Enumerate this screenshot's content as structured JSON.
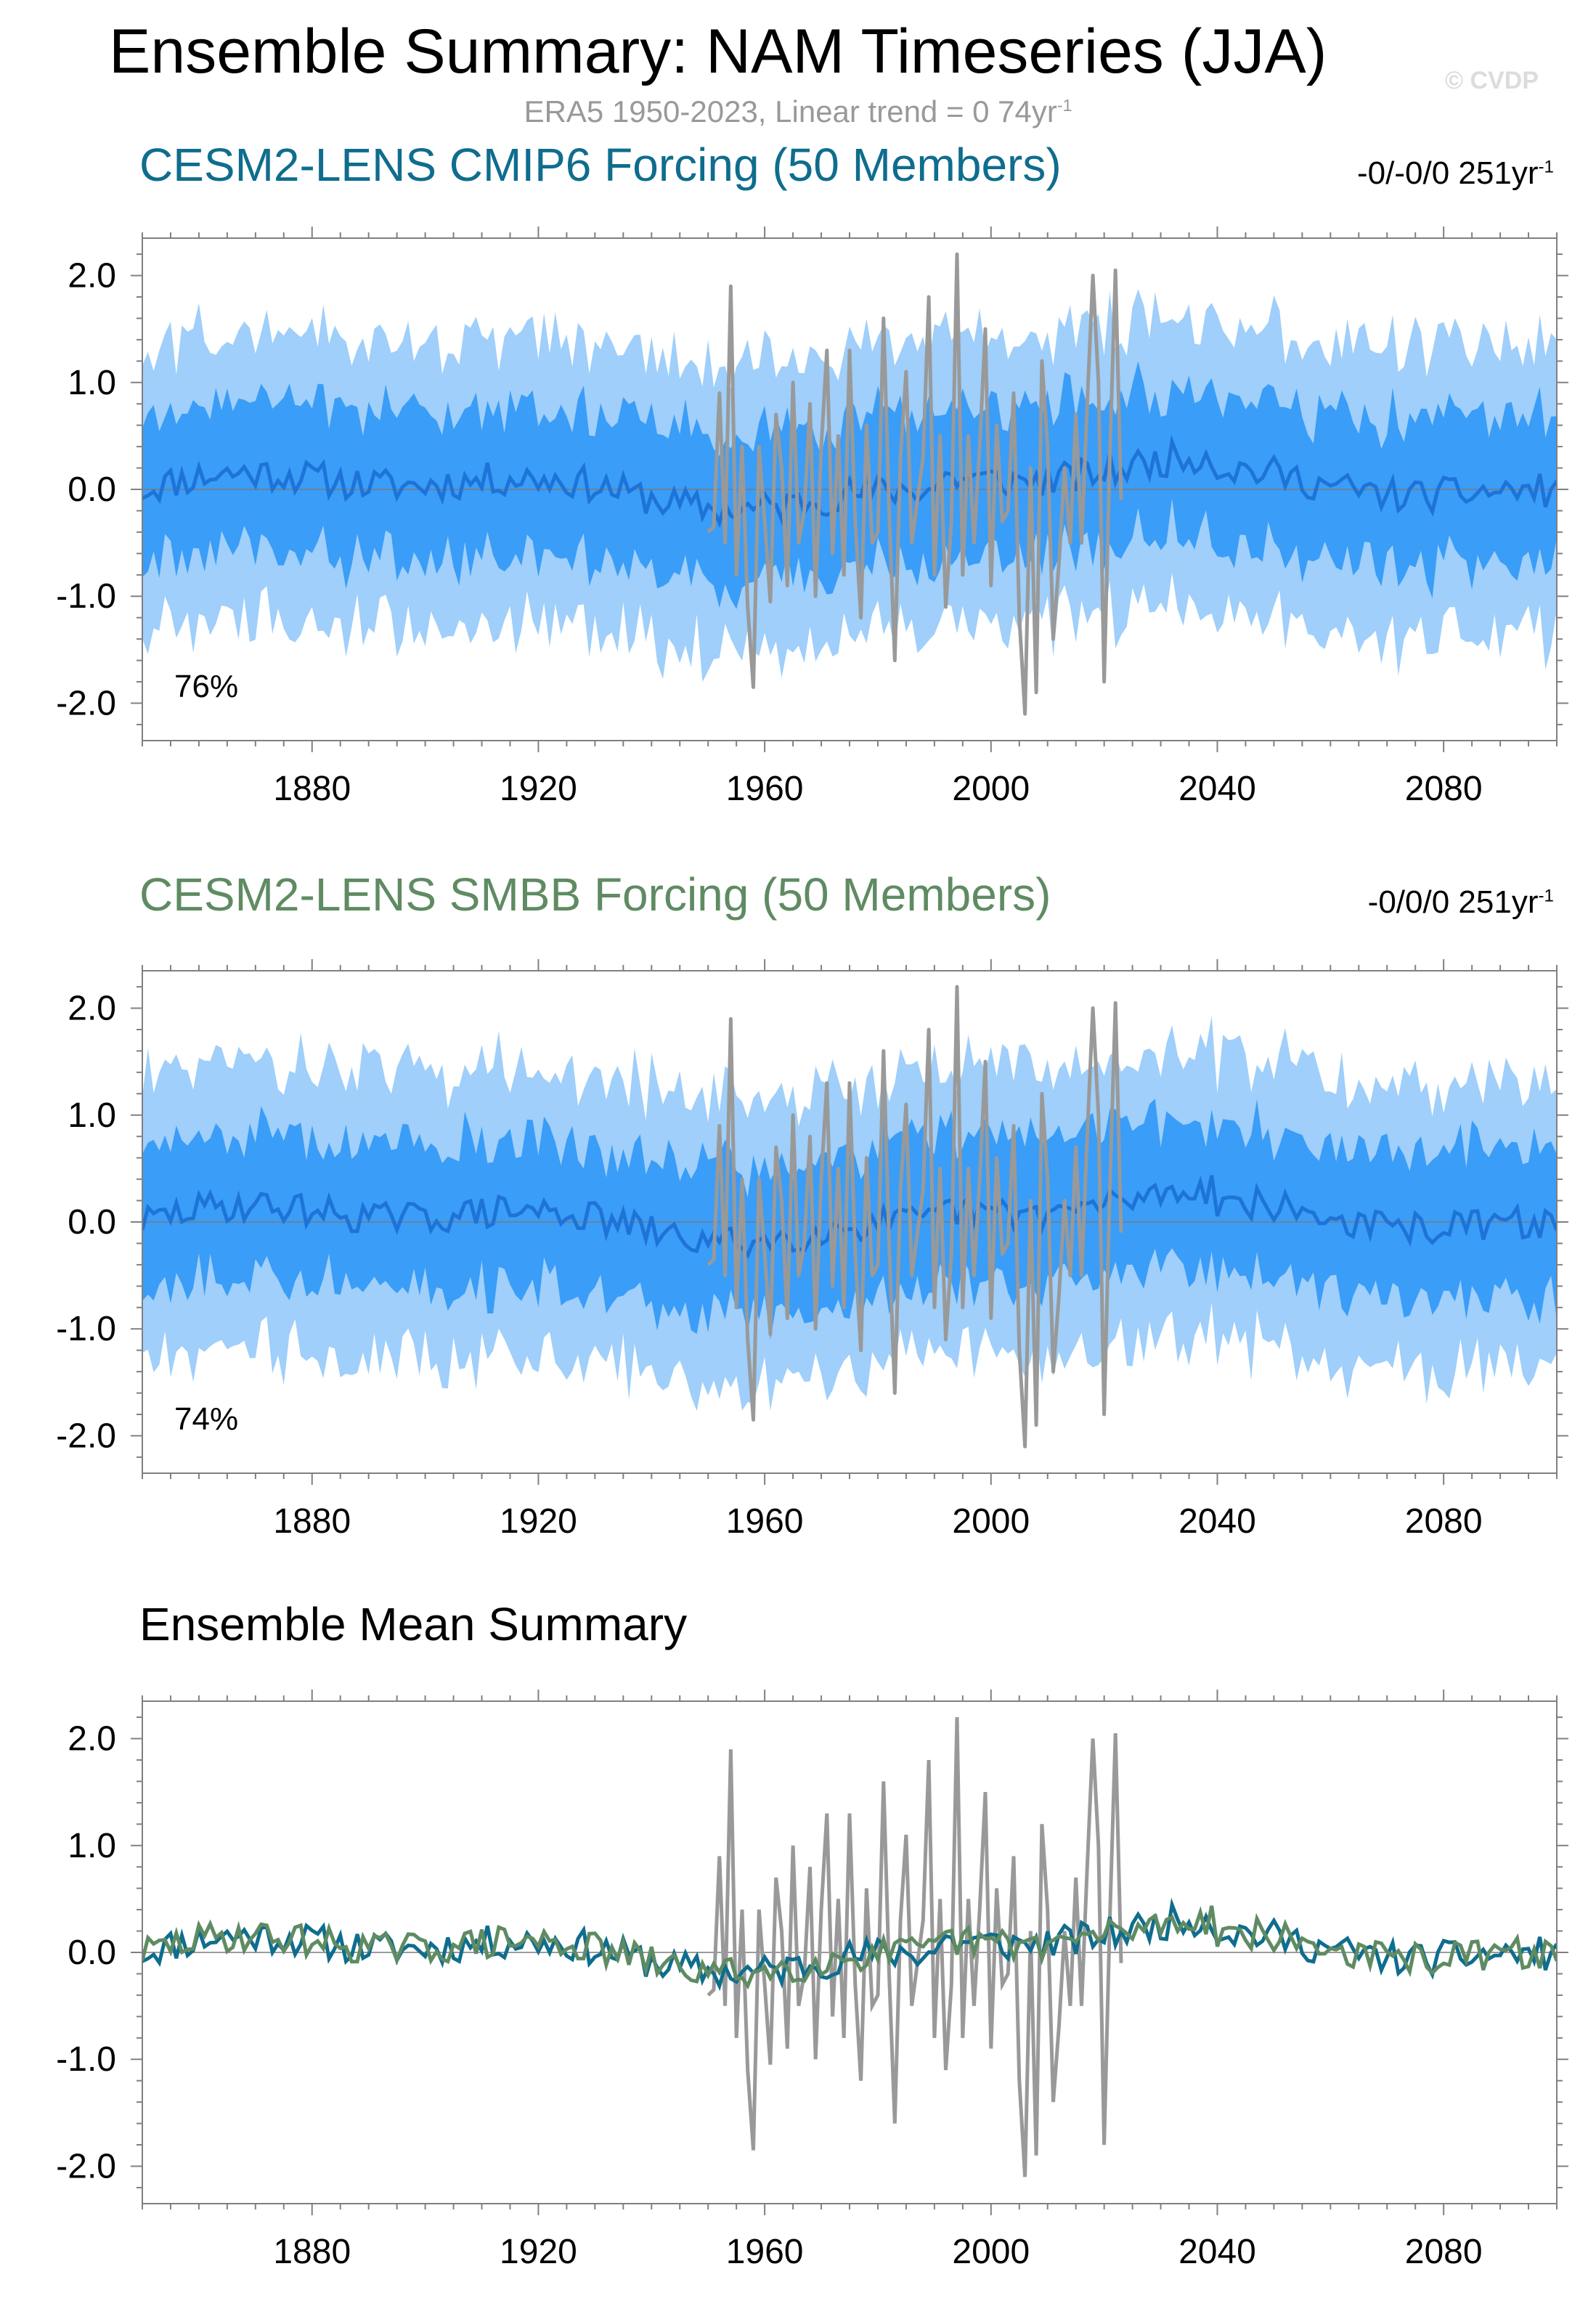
{
  "title": "Ensemble Summary: NAM Timeseries (JJA)",
  "watermark": "© CVDP",
  "observations_subtitle": {
    "text": "ERA5 1950-2023, Linear trend = 0 74yr",
    "superscript": "-1"
  },
  "colors": {
    "cmip6": "#0f6d8e",
    "smbb": "#5f8b62",
    "obs": "#999999",
    "mean_line": "#1e73d8",
    "band_inner": "#3a9df7",
    "band_outer": "#9fcffa",
    "frame": "#808080"
  },
  "panels": [
    {
      "title": "CESM2-LENS CMIP6 Forcing (50 Members)",
      "title_color": "#0f6d8e",
      "trend": {
        "text": "-0/-0/0 251yr",
        "superscript": "-1"
      },
      "percent": "76%"
    },
    {
      "title": "CESM2-LENS SMBB Forcing (50 Members)",
      "title_color": "#5f8b62",
      "trend": {
        "text": "-0/0/0 251yr",
        "superscript": "-1"
      },
      "percent": "74%"
    },
    {
      "title": "Ensemble Mean Summary",
      "title_color": "#000000"
    }
  ],
  "chart_data": [
    {
      "type": "area",
      "title": "CESM2-LENS CMIP6 Forcing (50 Members)",
      "xlim": [
        1850,
        2100
      ],
      "ylim": [
        -2.35,
        2.35
      ],
      "x_ticks": [
        "1880",
        "1920",
        "1960",
        "2000",
        "2040",
        "2080"
      ],
      "y_ticks": [
        "2.0",
        "1.0",
        "0.0",
        "-1.0",
        "-2.0"
      ],
      "x_range": [
        1850,
        2100
      ],
      "series": [
        {
          "role": "ensemble_mean",
          "seed": 11,
          "amp": 0.16
        },
        {
          "role": "band_inner",
          "halfwidth": 0.62
        },
        {
          "role": "band_outer",
          "halfwidth": 1.25
        },
        {
          "role": "obs",
          "x_range": [
            1950,
            2023
          ]
        }
      ],
      "annotation": "76%",
      "grid": false
    },
    {
      "type": "area",
      "title": "CESM2-LENS SMBB Forcing (50 Members)",
      "xlim": [
        1850,
        2100
      ],
      "ylim": [
        -2.35,
        2.35
      ],
      "x_ticks": [
        "1880",
        "1920",
        "1960",
        "2000",
        "2040",
        "2080"
      ],
      "y_ticks": [
        "2.0",
        "1.0",
        "0.0",
        "-1.0",
        "-2.0"
      ],
      "series": [
        {
          "role": "ensemble_mean",
          "seed": 29,
          "amp": 0.15
        },
        {
          "role": "band_inner",
          "halfwidth": 0.62
        },
        {
          "role": "band_outer",
          "halfwidth": 1.25
        },
        {
          "role": "obs",
          "x_range": [
            1950,
            2023
          ]
        }
      ],
      "annotation": "74%",
      "grid": false
    },
    {
      "type": "line",
      "title": "Ensemble Mean Summary",
      "xlim": [
        1850,
        2100
      ],
      "ylim": [
        -2.35,
        2.35
      ],
      "x_ticks": [
        "1880",
        "1920",
        "1960",
        "2000",
        "2040",
        "2080"
      ],
      "y_ticks": [
        "2.0",
        "1.0",
        "0.0",
        "-1.0",
        "-2.0"
      ],
      "series": [
        {
          "role": "cmip6_mean",
          "seed": 11,
          "amp": 0.16
        },
        {
          "role": "smbb_mean",
          "seed": 29,
          "amp": 0.15
        },
        {
          "role": "obs",
          "x_range": [
            1950,
            2023
          ]
        }
      ],
      "grid": false
    }
  ],
  "obs_series": {
    "years_range": [
      1950,
      2023
    ],
    "values": [
      -0.4,
      -0.35,
      0.9,
      -0.5,
      1.9,
      -0.8,
      0.4,
      -1.1,
      -1.85,
      0.4,
      -0.3,
      -1.05,
      0.7,
      0.2,
      -0.9,
      1.0,
      -0.5,
      -0.2,
      0.8,
      -1.0,
      0.4,
      1.3,
      -0.6,
      0.5,
      -0.8,
      1.3,
      -0.3,
      -1.2,
      0.6,
      -0.5,
      -0.4,
      1.6,
      -0.2,
      -1.6,
      0.3,
      1.1,
      -0.5,
      -0.1,
      0.3,
      1.8,
      -0.8,
      0.5,
      -1.1,
      -0.3,
      2.2,
      -0.8,
      0.5,
      -0.5,
      0.4,
      1.5,
      -0.9,
      0.6,
      -0.3,
      -0.2,
      0.9,
      -1.2,
      -2.1,
      0.2,
      -1.9,
      1.2,
      0.4,
      -1.4,
      -0.7,
      0.2,
      -0.5,
      0.7,
      -0.5,
      0.8,
      2.0,
      1.0,
      -1.8,
      0.3,
      2.05,
      -0.1
    ]
  }
}
